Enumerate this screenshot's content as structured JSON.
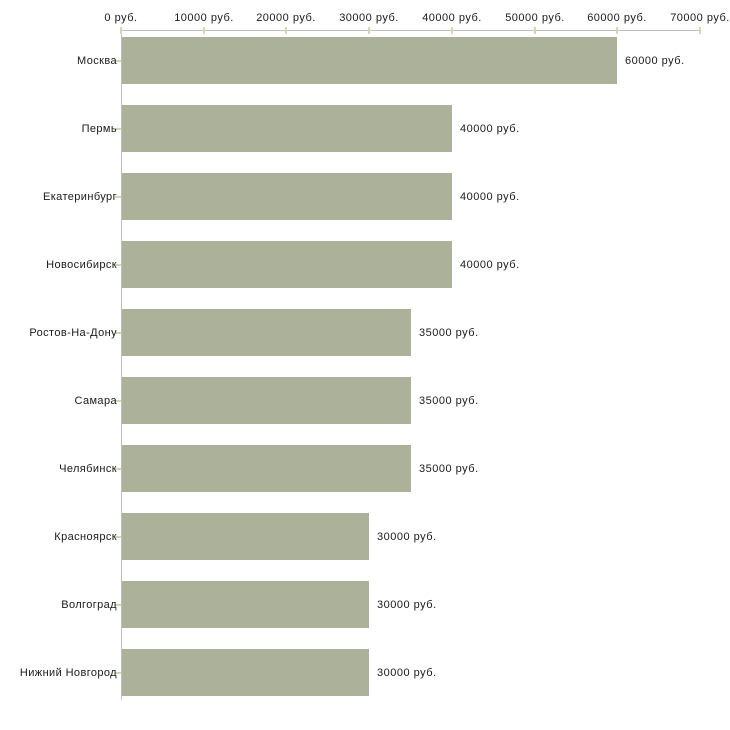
{
  "chart_data": {
    "type": "bar",
    "orientation": "horizontal",
    "title": "",
    "xlabel": "",
    "ylabel": "",
    "unit": "руб.",
    "categories": [
      "Москва",
      "Пермь",
      "Екатеринбург",
      "Новосибирск",
      "Ростов-На-Дону",
      "Самара",
      "Челябинск",
      "Красноярск",
      "Волгоград",
      "Нижний Новгород"
    ],
    "values": [
      60000,
      40000,
      40000,
      40000,
      35000,
      35000,
      35000,
      30000,
      30000,
      30000
    ],
    "value_labels": [
      "60000 руб.",
      "40000 руб.",
      "40000 руб.",
      "40000 руб.",
      "35000 руб.",
      "35000 руб.",
      "35000 руб.",
      "30000 руб.",
      "30000 руб.",
      "30000 руб."
    ],
    "xlim": [
      0,
      70000
    ],
    "x_ticks": [
      0,
      10000,
      20000,
      30000,
      40000,
      50000,
      60000,
      70000
    ],
    "x_tick_labels": [
      "0 руб.",
      "10000 руб.",
      "20000 руб.",
      "30000 руб.",
      "40000 руб.",
      "50000 руб.",
      "60000 руб.",
      "70000 руб."
    ],
    "grid": false,
    "legend": null,
    "colors": {
      "bar": "#acb299",
      "axis": "#c0c0c0",
      "tick": "#d6d6ad",
      "text": "#1a1a1a",
      "background": "#ffffff"
    }
  }
}
